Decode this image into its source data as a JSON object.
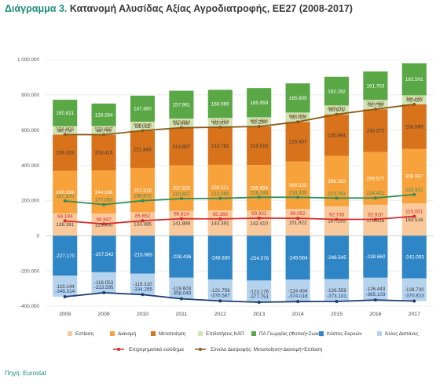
{
  "title_number": "Διάγραμμα 3.",
  "title_text": "Κατανομή Αλυσίδας Αξίας Αγροδιατροφής, ΕΕ27 (2008-2017)",
  "source_label": "Πηγή:",
  "source_value": "Eurostat",
  "chart_data": {
    "type": "bar",
    "stacked": true,
    "categories": [
      "2008",
      "2009",
      "2010",
      "2011",
      "2012",
      "2013",
      "2014",
      "2015",
      "2016",
      "2017"
    ],
    "ylim": [
      -400000,
      1000000
    ],
    "yticks": [
      -400000,
      -200000,
      0,
      200000,
      400000,
      600000,
      800000,
      1000000
    ],
    "ytick_labels": [
      "-400.000",
      "-200.000",
      "0",
      "200.000",
      "400.000",
      "600.000",
      "800.000",
      "1.000.000"
    ],
    "grid": true,
    "legend_position": "bottom",
    "series": [
      {
        "name": "Εστίαση",
        "color": "#f9c89b",
        "label_color": "#3a3a3a",
        "values": [
          128281,
          125900,
          133385,
          141888,
          143391,
          142410,
          151922,
          167155,
          175516,
          183516
        ],
        "labels": [
          "128.281",
          "125.900",
          "133.385",
          "141.888",
          "143.391",
          "142.410",
          "151.922",
          "167.155",
          "175.516",
          "183.516"
        ]
      },
      {
        "name": "Διανομή",
        "color": "#f7a23b",
        "label_color": "#ffffff",
        "values": [
          240193,
          244338,
          251518,
          257829,
          259521,
          259659,
          269525,
          286102,
          299577,
          308987
        ],
        "labels": [
          "240.193",
          "244.338",
          "251.518",
          "257.829",
          "259.521",
          "259.659",
          "269.525",
          "286.102",
          "299.577",
          "308.987"
        ]
      },
      {
        "name": "Μεταποίηση",
        "color": "#d8721b",
        "label_color": "#3a3a3a",
        "values": [
          206329,
          203419,
          211843,
          213897,
          213792,
          218515,
          225457,
          235994,
          243372,
          253589
        ],
        "labels": [
          "206.329",
          "203.419",
          "211.843",
          "213.897",
          "213.792",
          "218.515",
          "225.457",
          "235.994",
          "243.372",
          "253.589"
        ]
      },
      {
        "name": "Επιδοτήσεις ΚΑΠ",
        "color": "#cfe3b4",
        "label_color": "#3a3a3a",
        "values": [
          46750,
          48799,
          51012,
          51866,
          52000,
          52284,
          52725,
          50571,
          52718,
          51420
        ],
        "labels": [
          "46.750",
          "48.799",
          "51.012",
          "51.866",
          "52.000",
          "52.284",
          "52.725",
          "50.571",
          "52.718",
          "51.420"
        ]
      },
      {
        "name": "ΠΑ Γεωργίας (Φυτική+Ζωική)",
        "color": "#5aa845",
        "label_color": "#ffffff",
        "values": [
          150821,
          128284,
          147660,
          157961,
          160065,
          165959,
          165609,
          163192,
          161703,
          182501
        ],
        "labels": [
          "150.821",
          "128.284",
          "147.660",
          "157.961",
          "160.065",
          "165.959",
          "165.609",
          "163.192",
          "161.703",
          "182.501"
        ]
      },
      {
        "name": "Κόστος Εκροών",
        "color": "#2f86c6",
        "label_color": "#ffffff",
        "values": [
          -227170,
          -207542,
          -215985,
          -238436,
          -248830,
          -254576,
          -249584,
          -246545,
          -238660,
          -242093
        ],
        "labels": [
          "-227.170",
          "-207.542",
          "-215.985",
          "-238.436",
          "-248.830",
          "-254.576",
          "-249.584",
          "-246.545",
          "-238.660",
          "-242.093"
        ]
      },
      {
        "name": "Άλλες Δαπάνες",
        "color": "#b6d3ee",
        "label_color": "#3a3a3a",
        "values": [
          -119144,
          -116053,
          -118310,
          -119603,
          -121756,
          -123176,
          -124434,
          -126558,
          -126443,
          -128730
        ],
        "labels": [
          "-119.144",
          "-116.053",
          "-118.310",
          "-119.603",
          "-121.756",
          "-123.176",
          "-124.434",
          "-126.558",
          "-126.443",
          "-128.730"
        ]
      }
    ],
    "lines": [
      {
        "name": "Επιχειρηματικό εισόδημα",
        "color": "#d62a2a",
        "values": [
          84194,
          66847,
          85652,
          96814,
          95360,
          99932,
          99052,
          92735,
          92920,
          110001
        ],
        "labels": [
          "84.194",
          "66.847",
          "85.652",
          "96.814",
          "95.360",
          "99.932",
          "99.052",
          "92.735",
          "92.920",
          "110.001"
        ]
      },
      {
        "name": "Σύνολο Διατροφής: Μεταποίηση+Διανομή+Εστίαση",
        "color": "#8b5a1b",
        "values": [
          574803,
          573657,
          596746,
          613614,
          616704,
          620584,
          646904,
          689251,
          718465,
          746092
        ],
        "labels": [
          "574.803",
          "573.657",
          "596.746",
          "613.614",
          "616.704",
          "620.584",
          "646.904",
          "689.251",
          "718.465",
          "746.092"
        ]
      },
      {
        "color": "#2e8f5a",
        "values": [
          197570,
          177083,
          198672,
          210827,
          212065,
          218243,
          218335,
          213763,
          214421,
          233921
        ],
        "labels": [
          "197.570",
          "177.083",
          "198.672",
          "210.827",
          "212.065",
          "218.243",
          "218.335",
          "213.763",
          "214.421",
          "233.921"
        ]
      },
      {
        "color": "#1d3f6e",
        "values": [
          -346314,
          -323595,
          -334295,
          -358040,
          -370587,
          -377751,
          -374018,
          -373103,
          -365103,
          -370823
        ],
        "labels": [
          "-346.314",
          "-323.595",
          "-334.295",
          "-358.040",
          "-370.587",
          "-377.751",
          "-374.018",
          "-373.103",
          "-365.103",
          "-370.823"
        ]
      }
    ]
  }
}
